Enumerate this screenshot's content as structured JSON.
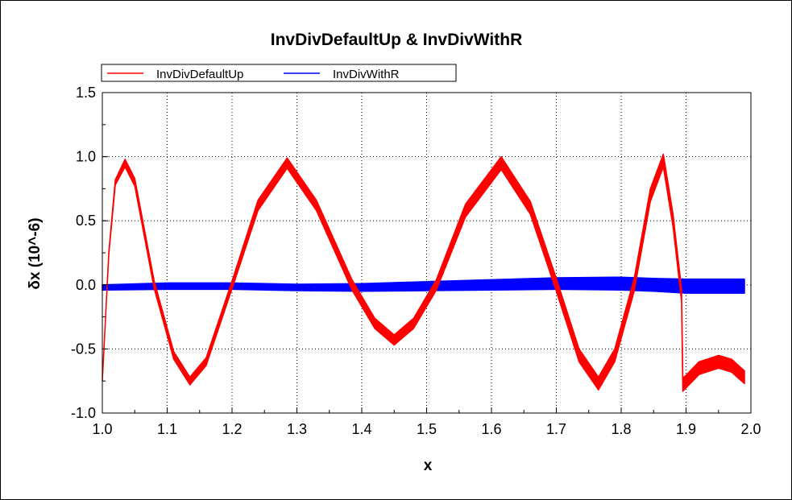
{
  "chart_data": {
    "type": "line",
    "title": "InvDivDefaultUp & InvDivWithR",
    "xlabel": "x",
    "ylabel": "δx (10^-6)",
    "xlim": [
      1.0,
      2.0
    ],
    "ylim": [
      -1.0,
      1.5
    ],
    "xticks": [
      "1.0",
      "1.1",
      "1.2",
      "1.3",
      "1.4",
      "1.5",
      "1.6",
      "1.7",
      "1.8",
      "1.9",
      "2.0"
    ],
    "yticks": [
      "1.5",
      "1.0",
      "0.5",
      "0.0",
      "-0.5",
      "-1.0"
    ],
    "grid": true,
    "legend_position": "top-left",
    "series": [
      {
        "name": "InvDivDefaultUp",
        "color": "#ff0000",
        "x": [
          1.0,
          1.01,
          1.02,
          1.035,
          1.05,
          1.08,
          1.11,
          1.135,
          1.16,
          1.2,
          1.24,
          1.285,
          1.33,
          1.385,
          1.42,
          1.45,
          1.48,
          1.515,
          1.56,
          1.615,
          1.66,
          1.7,
          1.735,
          1.765,
          1.79,
          1.82,
          1.845,
          1.865,
          1.88,
          1.893,
          1.895,
          1.92,
          1.95,
          1.97,
          1.99
        ],
        "y": [
          -0.75,
          0.25,
          0.8,
          0.95,
          0.8,
          0.0,
          -0.55,
          -0.75,
          -0.6,
          0.0,
          0.62,
          0.95,
          0.62,
          0.0,
          -0.3,
          -0.43,
          -0.3,
          0.0,
          0.58,
          0.95,
          0.6,
          0.0,
          -0.55,
          -0.77,
          -0.55,
          0.0,
          0.7,
          0.97,
          0.5,
          -0.08,
          -0.78,
          -0.65,
          -0.6,
          -0.63,
          -0.72
        ],
        "band_halfwidth": [
          0.0,
          0.01,
          0.02,
          0.03,
          0.03,
          0.03,
          0.03,
          0.03,
          0.03,
          0.03,
          0.04,
          0.04,
          0.04,
          0.04,
          0.04,
          0.04,
          0.04,
          0.04,
          0.05,
          0.05,
          0.05,
          0.05,
          0.05,
          0.05,
          0.05,
          0.05,
          0.05,
          0.05,
          0.05,
          0.05,
          0.05,
          0.05,
          0.05,
          0.05,
          0.05
        ]
      },
      {
        "name": "InvDivWithR",
        "color": "#0000ff",
        "x": [
          1.0,
          1.1,
          1.2,
          1.3,
          1.4,
          1.5,
          1.6,
          1.7,
          1.8,
          1.85,
          1.9,
          1.95,
          1.99
        ],
        "y": [
          -0.02,
          -0.01,
          -0.01,
          -0.02,
          -0.02,
          -0.01,
          0.0,
          0.01,
          0.01,
          0.0,
          -0.01,
          -0.01,
          -0.01
        ],
        "band_halfwidth": [
          0.02,
          0.025,
          0.025,
          0.025,
          0.03,
          0.035,
          0.04,
          0.045,
          0.05,
          0.05,
          0.055,
          0.055,
          0.055
        ]
      }
    ]
  }
}
